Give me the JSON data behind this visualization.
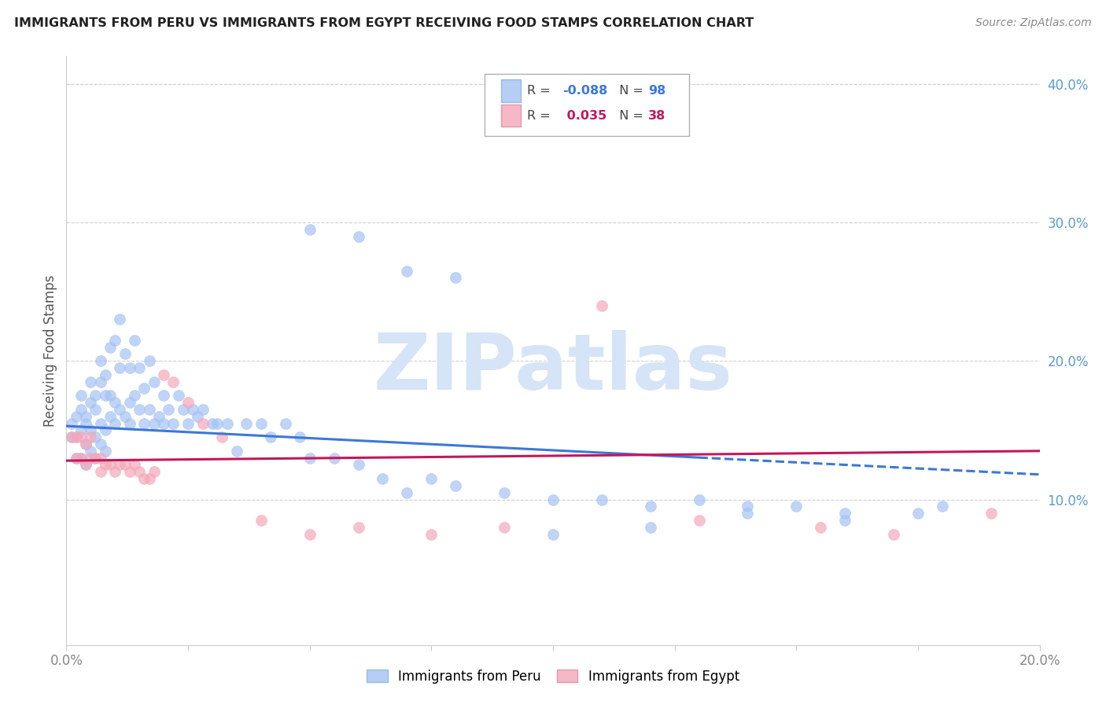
{
  "title": "IMMIGRANTS FROM PERU VS IMMIGRANTS FROM EGYPT RECEIVING FOOD STAMPS CORRELATION CHART",
  "source": "Source: ZipAtlas.com",
  "ylabel": "Receiving Food Stamps",
  "xlim": [
    0.0,
    0.2
  ],
  "ylim": [
    -0.005,
    0.42
  ],
  "yticks_right": [
    0.1,
    0.2,
    0.3,
    0.4
  ],
  "ytick_labels_right": [
    "10.0%",
    "20.0%",
    "30.0%",
    "40.0%"
  ],
  "xtick_positions": [
    0.0,
    0.025,
    0.05,
    0.075,
    0.1,
    0.125,
    0.15,
    0.175,
    0.2
  ],
  "peru_R": -0.088,
  "peru_N": 98,
  "egypt_R": 0.035,
  "egypt_N": 38,
  "peru_color": "#a4c2f4",
  "egypt_color": "#f4a7b9",
  "trend_peru_color": "#3c78d8",
  "trend_egypt_color": "#c2185b",
  "watermark": "ZIPatlas",
  "watermark_color": "#d6e4f7",
  "legend_peru_label": "Immigrants from Peru",
  "legend_egypt_label": "Immigrants from Egypt",
  "peru_x": [
    0.001,
    0.001,
    0.002,
    0.002,
    0.002,
    0.003,
    0.003,
    0.003,
    0.003,
    0.004,
    0.004,
    0.004,
    0.004,
    0.005,
    0.005,
    0.005,
    0.005,
    0.006,
    0.006,
    0.006,
    0.006,
    0.007,
    0.007,
    0.007,
    0.007,
    0.008,
    0.008,
    0.008,
    0.008,
    0.009,
    0.009,
    0.009,
    0.01,
    0.01,
    0.01,
    0.011,
    0.011,
    0.011,
    0.012,
    0.012,
    0.013,
    0.013,
    0.013,
    0.014,
    0.014,
    0.015,
    0.015,
    0.016,
    0.016,
    0.017,
    0.017,
    0.018,
    0.018,
    0.019,
    0.02,
    0.02,
    0.021,
    0.022,
    0.023,
    0.024,
    0.025,
    0.026,
    0.027,
    0.028,
    0.03,
    0.031,
    0.033,
    0.035,
    0.037,
    0.04,
    0.042,
    0.045,
    0.048,
    0.05,
    0.055,
    0.06,
    0.065,
    0.07,
    0.075,
    0.08,
    0.09,
    0.1,
    0.11,
    0.12,
    0.13,
    0.14,
    0.15,
    0.16,
    0.175,
    0.18,
    0.05,
    0.06,
    0.07,
    0.08,
    0.1,
    0.12,
    0.14,
    0.16
  ],
  "peru_y": [
    0.145,
    0.155,
    0.16,
    0.13,
    0.145,
    0.15,
    0.165,
    0.13,
    0.175,
    0.14,
    0.155,
    0.125,
    0.16,
    0.15,
    0.17,
    0.135,
    0.185,
    0.145,
    0.165,
    0.13,
    0.175,
    0.155,
    0.185,
    0.14,
    0.2,
    0.15,
    0.175,
    0.135,
    0.19,
    0.16,
    0.175,
    0.21,
    0.155,
    0.17,
    0.215,
    0.165,
    0.195,
    0.23,
    0.16,
    0.205,
    0.17,
    0.195,
    0.155,
    0.175,
    0.215,
    0.165,
    0.195,
    0.155,
    0.18,
    0.165,
    0.2,
    0.155,
    0.185,
    0.16,
    0.155,
    0.175,
    0.165,
    0.155,
    0.175,
    0.165,
    0.155,
    0.165,
    0.16,
    0.165,
    0.155,
    0.155,
    0.155,
    0.135,
    0.155,
    0.155,
    0.145,
    0.155,
    0.145,
    0.13,
    0.13,
    0.125,
    0.115,
    0.105,
    0.115,
    0.11,
    0.105,
    0.1,
    0.1,
    0.095,
    0.1,
    0.095,
    0.095,
    0.09,
    0.09,
    0.095,
    0.295,
    0.29,
    0.265,
    0.26,
    0.075,
    0.08,
    0.09,
    0.085
  ],
  "egypt_x": [
    0.001,
    0.002,
    0.002,
    0.003,
    0.003,
    0.004,
    0.004,
    0.005,
    0.005,
    0.006,
    0.007,
    0.007,
    0.008,
    0.009,
    0.01,
    0.011,
    0.012,
    0.013,
    0.014,
    0.015,
    0.016,
    0.017,
    0.018,
    0.02,
    0.022,
    0.025,
    0.028,
    0.032,
    0.04,
    0.05,
    0.06,
    0.075,
    0.09,
    0.11,
    0.13,
    0.155,
    0.17,
    0.19
  ],
  "egypt_y": [
    0.145,
    0.13,
    0.145,
    0.13,
    0.145,
    0.125,
    0.14,
    0.13,
    0.145,
    0.13,
    0.13,
    0.12,
    0.125,
    0.125,
    0.12,
    0.125,
    0.125,
    0.12,
    0.125,
    0.12,
    0.115,
    0.115,
    0.12,
    0.19,
    0.185,
    0.17,
    0.155,
    0.145,
    0.085,
    0.075,
    0.08,
    0.075,
    0.08,
    0.24,
    0.085,
    0.08,
    0.075,
    0.09
  ],
  "peru_trend_start_y": 0.153,
  "peru_trend_end_y": 0.118,
  "egypt_trend_start_y": 0.128,
  "egypt_trend_end_y": 0.135,
  "peru_solid_cutoff": 0.13,
  "background_color": "#ffffff",
  "grid_color": "#d0d0d0",
  "spine_color": "#cccccc",
  "tick_color": "#888888",
  "right_tick_color": "#5b9bd5",
  "title_color": "#222222",
  "source_color": "#888888",
  "ylabel_color": "#555555"
}
